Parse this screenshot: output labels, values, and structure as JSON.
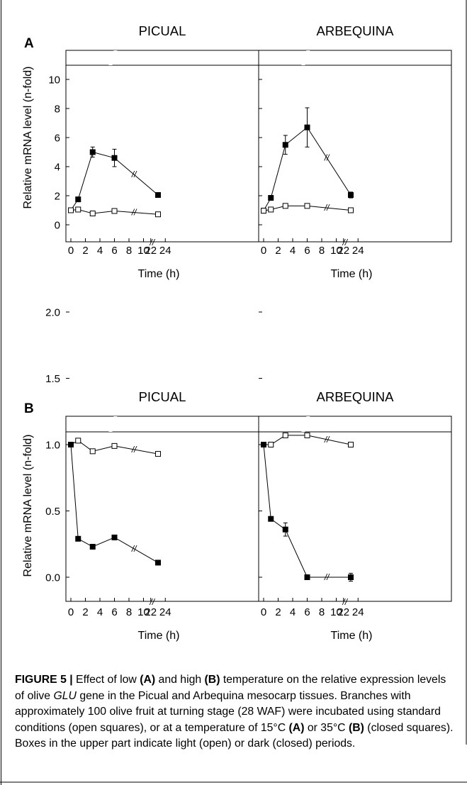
{
  "figure": {
    "panel_a_letter": "A",
    "panel_b_letter": "B",
    "break_mark": "//"
  },
  "caption": {
    "label": "FIGURE 5 |",
    "t1": " Effect of low ",
    "b1": "(A)",
    "t2": " and high ",
    "b2": "(B)",
    "t3": " temperature on the relative expression levels of olive ",
    "gene": "GLU",
    "t4": " gene in the Picual and Arbequina mesocarp tissues. Branches with approximately 100 olive fruit at turning stage (28 WAF) were incubated using standard conditions (open squares), or at a temperature of 15°C ",
    "b3": "(A)",
    "t5": " or 35°C ",
    "b4": "(B)",
    "t6": " (closed squares). Boxes in the upper part indicate light (open) or dark (closed) periods."
  },
  "colors": {
    "ink": "#000000",
    "background": "#ffffff"
  },
  "chart_data": [
    {
      "type": "line",
      "panel": "A",
      "title": "PICUAL",
      "xlabel": "Time (h)",
      "ylabel": "Relative mRNA level (n-fold)",
      "xlim": [
        -0.5,
        24.8
      ],
      "ylim": [
        -1.05,
        11
      ],
      "x_break": [
        11,
        22
      ],
      "x_ticks": [
        0,
        2,
        4,
        6,
        8,
        10,
        22,
        24
      ],
      "y_ticks": [
        0,
        2,
        4,
        6,
        8,
        10
      ],
      "y_tick_labels": [
        "0",
        "2",
        "4",
        "6",
        "8",
        "10"
      ],
      "light_dark_bar": {
        "dark_hours": [
          10.3,
          11.9
        ]
      },
      "series": [
        {
          "marker": "closed-square",
          "x": [
            0,
            1,
            3,
            6,
            23
          ],
          "y": [
            1.0,
            1.75,
            5.0,
            4.6,
            2.05
          ],
          "err": [
            0,
            0,
            0.35,
            0.6,
            0
          ]
        },
        {
          "marker": "open-square",
          "x": [
            0,
            1,
            3,
            6,
            23
          ],
          "y": [
            1.0,
            1.05,
            0.78,
            0.95,
            0.72
          ],
          "err": [
            0,
            0,
            0,
            0,
            0
          ]
        }
      ]
    },
    {
      "type": "line",
      "panel": "A",
      "title": "ARBEQUINA",
      "xlabel": "Time (h)",
      "ylabel": "",
      "xlim": [
        -0.5,
        24.8
      ],
      "ylim": [
        -1.05,
        11
      ],
      "x_break": [
        11,
        22
      ],
      "x_ticks": [
        0,
        2,
        4,
        6,
        8,
        10,
        22,
        24
      ],
      "y_ticks": [
        0,
        2,
        4,
        6,
        8,
        10
      ],
      "y_tick_labels": [],
      "light_dark_bar": {
        "dark_hours": [
          10.3,
          11.9
        ]
      },
      "series": [
        {
          "marker": "closed-square",
          "x": [
            0,
            1,
            3,
            6,
            23
          ],
          "y": [
            0.97,
            1.85,
            5.5,
            6.7,
            2.05
          ],
          "err": [
            0,
            0,
            0.65,
            1.35,
            0.2
          ]
        },
        {
          "marker": "open-square",
          "x": [
            0,
            1,
            3,
            6,
            23
          ],
          "y": [
            0.97,
            1.05,
            1.3,
            1.3,
            1.0
          ],
          "err": [
            0,
            0,
            0,
            0,
            0
          ]
        }
      ]
    },
    {
      "type": "line",
      "panel": "B",
      "title": "PICUAL",
      "xlabel": "Time (h)",
      "ylabel": "Relative mRNA level (n-fold)",
      "xlim": [
        -0.5,
        24.8
      ],
      "ylim": [
        -0.28,
        2.75
      ],
      "x_break": [
        11,
        22
      ],
      "x_ticks": [
        0,
        2,
        4,
        6,
        8,
        10,
        22,
        24
      ],
      "y_ticks": [
        0,
        0.5,
        1.0,
        1.5,
        2.0
      ],
      "y_tick_labels": [
        "0.0",
        "0.5",
        "1.0",
        "1.5",
        "2.0"
      ],
      "light_dark_bar": {
        "dark_hours": [
          10.3,
          11.9
        ]
      },
      "series": [
        {
          "marker": "open-square",
          "x": [
            0,
            1,
            3,
            6,
            23
          ],
          "y": [
            1.0,
            1.03,
            0.95,
            0.99,
            0.93
          ],
          "err": [
            0,
            0,
            0,
            0,
            0
          ]
        },
        {
          "marker": "closed-square",
          "x": [
            0,
            1,
            3,
            6,
            23
          ],
          "y": [
            1.0,
            0.29,
            0.23,
            0.3,
            0.11
          ],
          "err": [
            0,
            0,
            0,
            0,
            0
          ]
        }
      ]
    },
    {
      "type": "line",
      "panel": "B",
      "title": "ARBEQUINA",
      "xlabel": "Time (h)",
      "ylabel": "",
      "xlim": [
        -0.5,
        24.8
      ],
      "ylim": [
        -0.28,
        2.75
      ],
      "x_break": [
        11,
        22
      ],
      "x_ticks": [
        0,
        2,
        4,
        6,
        8,
        10,
        22,
        24
      ],
      "y_ticks": [
        0,
        0.5,
        1.0,
        1.5,
        2.0
      ],
      "y_tick_labels": [],
      "light_dark_bar": {
        "dark_hours": [
          10.3,
          11.9
        ]
      },
      "series": [
        {
          "marker": "open-square",
          "x": [
            0,
            1,
            3,
            6,
            23
          ],
          "y": [
            1.0,
            1.0,
            1.07,
            1.07,
            1.0
          ],
          "err": [
            0,
            0,
            0,
            0,
            0
          ]
        },
        {
          "marker": "closed-square",
          "x": [
            0,
            1,
            3,
            6,
            23
          ],
          "y": [
            1.0,
            0.44,
            0.36,
            0.0,
            0.0
          ],
          "err": [
            0,
            0,
            0.05,
            0,
            0.03
          ]
        }
      ]
    }
  ]
}
